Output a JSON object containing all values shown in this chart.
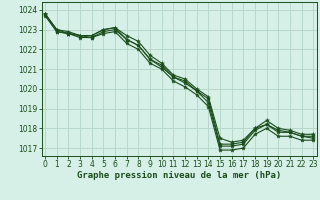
{
  "title": "Graphe pression niveau de la mer (hPa)",
  "bg_color": "#d6f0e8",
  "plot_bg_color": "#d6f0e8",
  "grid_color": "#b8d8cc",
  "line_color": "#1a4d1a",
  "marker_color": "#1a4d1a",
  "xlim": [
    -0.3,
    23.3
  ],
  "ylim": [
    1016.6,
    1024.4
  ],
  "yticks": [
    1017,
    1018,
    1019,
    1020,
    1021,
    1022,
    1023,
    1024
  ],
  "xticks": [
    0,
    1,
    2,
    3,
    4,
    5,
    6,
    7,
    8,
    9,
    10,
    11,
    12,
    13,
    14,
    15,
    16,
    17,
    18,
    19,
    20,
    21,
    22,
    23
  ],
  "series": [
    [
      1023.8,
      1023.0,
      1022.8,
      1022.7,
      1022.7,
      1023.0,
      1023.1,
      1022.5,
      1022.2,
      1021.5,
      1021.1,
      1020.6,
      1020.4,
      1019.9,
      1019.5,
      1017.2,
      1017.2,
      1017.3,
      1018.0,
      1018.2,
      1017.9,
      1017.8,
      1017.6,
      1017.6
    ],
    [
      1023.8,
      1023.0,
      1022.9,
      1022.7,
      1022.7,
      1023.0,
      1023.1,
      1022.7,
      1022.4,
      1021.7,
      1021.3,
      1020.7,
      1020.5,
      1020.0,
      1019.6,
      1017.5,
      1017.3,
      1017.4,
      1018.0,
      1018.4,
      1018.0,
      1017.9,
      1017.7,
      1017.7
    ],
    [
      1023.8,
      1022.9,
      1022.8,
      1022.7,
      1022.6,
      1022.9,
      1023.0,
      1022.5,
      1022.2,
      1021.5,
      1021.2,
      1020.6,
      1020.3,
      1019.9,
      1019.3,
      1017.1,
      1017.1,
      1017.2,
      1017.9,
      1018.2,
      1017.8,
      1017.8,
      1017.6,
      1017.5
    ],
    [
      1023.7,
      1022.9,
      1022.8,
      1022.6,
      1022.6,
      1022.8,
      1022.9,
      1022.3,
      1022.0,
      1021.3,
      1021.0,
      1020.4,
      1020.1,
      1019.7,
      1019.1,
      1016.9,
      1016.9,
      1017.0,
      1017.7,
      1018.0,
      1017.6,
      1017.6,
      1017.4,
      1017.4
    ]
  ]
}
